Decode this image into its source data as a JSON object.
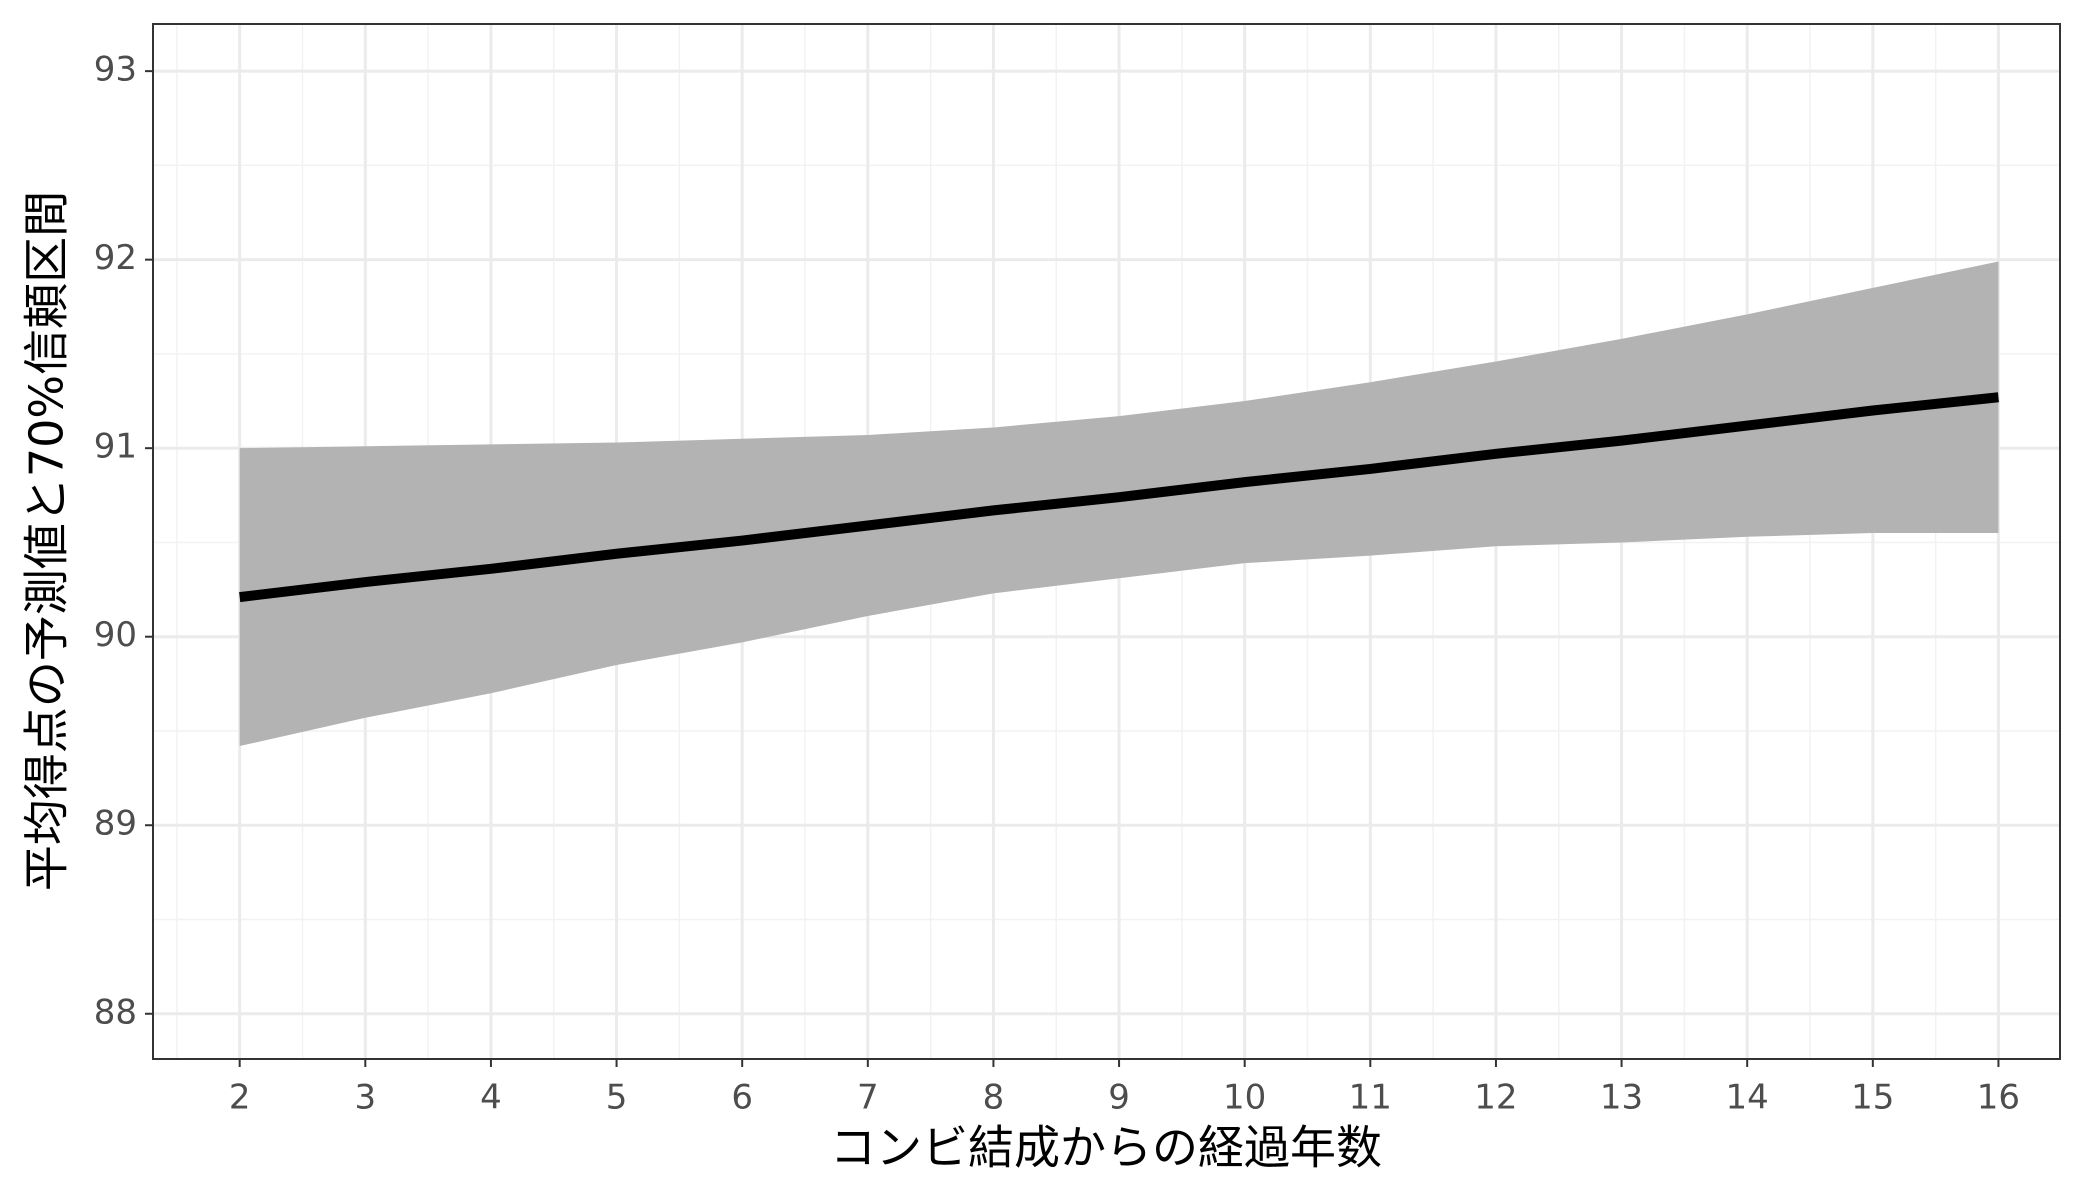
{
  "chart_data": {
    "type": "line",
    "x_label": "コンビ結成からの経過年数",
    "y_label": "平均得点の予測値と70%信頼区間",
    "x": [
      2,
      3,
      4,
      5,
      6,
      7,
      8,
      9,
      10,
      11,
      12,
      13,
      14,
      15,
      16
    ],
    "series": [
      {
        "color": "#000000",
        "band_color": "#b3b3b3",
        "values": [
          90.21,
          90.29,
          90.36,
          90.44,
          90.51,
          90.59,
          90.67,
          90.74,
          90.82,
          90.89,
          90.97,
          91.04,
          91.12,
          91.2,
          91.27
        ],
        "upper": [
          91.0,
          91.01,
          91.02,
          91.03,
          91.05,
          91.07,
          91.11,
          91.17,
          91.25,
          91.35,
          91.46,
          91.58,
          91.71,
          91.85,
          91.99
        ],
        "lower": [
          89.42,
          89.57,
          89.7,
          89.85,
          89.97,
          90.11,
          90.23,
          90.31,
          90.39,
          90.43,
          90.48,
          90.5,
          90.53,
          90.55,
          90.55
        ]
      }
    ],
    "xlim": [
      1.31,
      16.49
    ],
    "ylim": [
      87.76,
      93.25
    ],
    "xticks": [
      2,
      3,
      4,
      5,
      6,
      7,
      8,
      9,
      10,
      11,
      12,
      13,
      14,
      15,
      16
    ],
    "yticks": [
      88,
      89,
      90,
      91,
      92,
      93
    ],
    "grid": true
  }
}
